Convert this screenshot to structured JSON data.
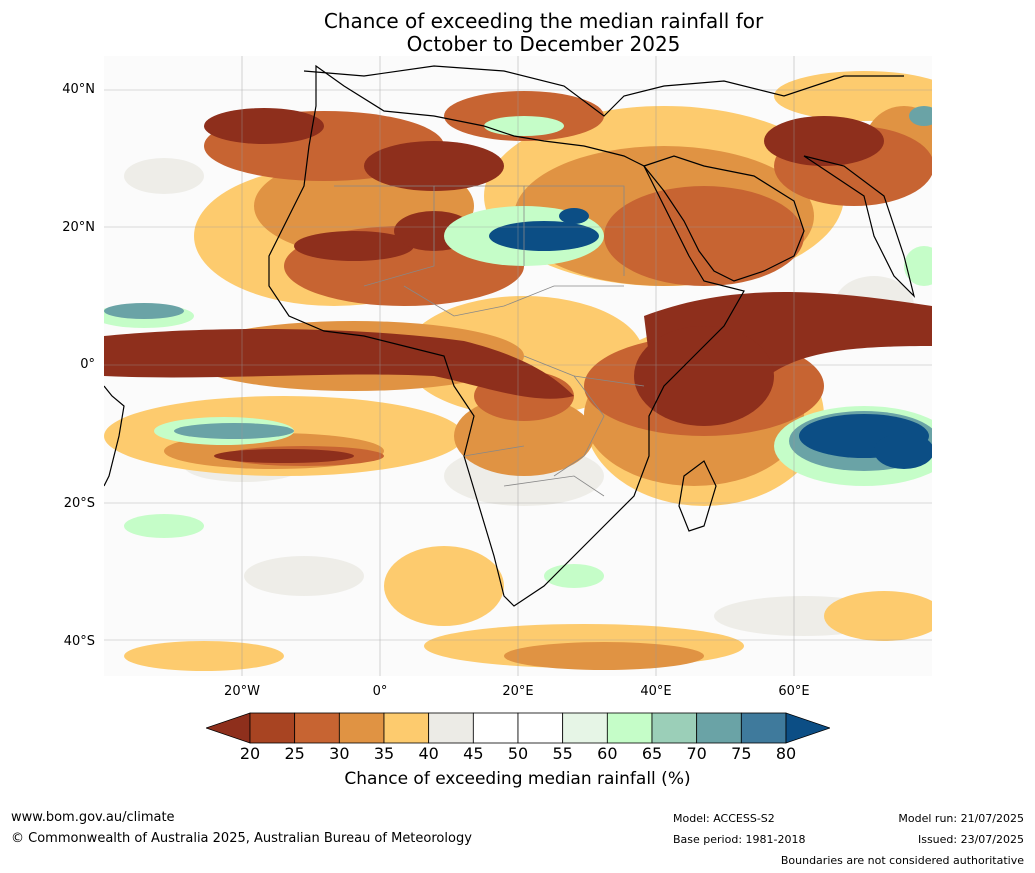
{
  "title_line1": "Chance of exceeding the median rainfall for",
  "title_line2": "October to December 2025",
  "lat_ticks": [
    "40°N",
    "20°N",
    "0°",
    "20°S",
    "40°S"
  ],
  "lon_ticks": [
    "20°W",
    "0°",
    "20°E",
    "40°E",
    "60°E"
  ],
  "colorbar": {
    "labels": [
      "20",
      "25",
      "30",
      "35",
      "40",
      "45",
      "50",
      "55",
      "60",
      "65",
      "70",
      "75",
      "80"
    ],
    "colors": [
      "#8e2f1c",
      "#a84422",
      "#c76432",
      "#e09343",
      "#fdcb6e",
      "#ecebe6",
      "#ffffff",
      "#ffffff",
      "#e6f5e6",
      "#c5fdc8",
      "#9bcfb8",
      "#6aa3a6",
      "#3f7a9c",
      "#0c4e85"
    ],
    "title": "Chance of exceeding median rainfall (%)"
  },
  "footer": {
    "url": "www.bom.gov.au/climate",
    "copyright": "© Commonwealth of Australia 2025, Australian Bureau of Meteorology",
    "model": "Model: ACCESS-S2",
    "base_period": "Base period: 1981-2018",
    "model_run": "Model run: 21/07/2025",
    "issued": "Issued: 23/07/2025",
    "boundaries": "Boundaries are not considered authoritative"
  },
  "map_colors": {
    "very_dry": "#8e2f1c",
    "dry": "#c76432",
    "mod_dry": "#e09343",
    "slight_dry": "#fdcb6e",
    "neutral": "#ecebe6",
    "slight_wet": "#c5fdc8",
    "wet": "#6aa3a6",
    "very_wet": "#0c4e85"
  }
}
